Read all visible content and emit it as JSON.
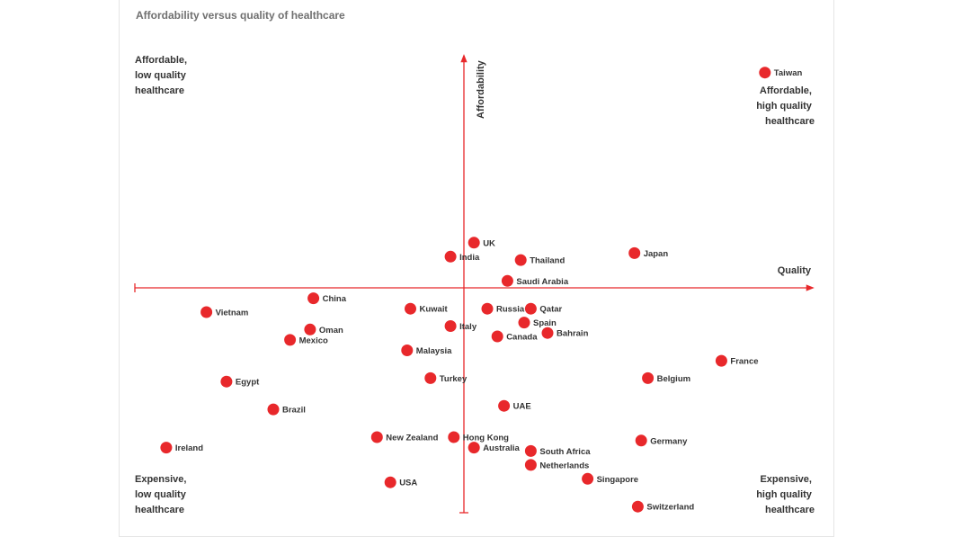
{
  "chart_data": {
    "type": "scatter",
    "title": "Affordability versus quality of healthcare",
    "xlabel": "Quality",
    "ylabel": "Affordability",
    "grid": false,
    "point_color": "#e8282b",
    "axis_color": "#e8282b",
    "quadrants": {
      "top_left": [
        "Affordable,",
        "low quality",
        "healthcare"
      ],
      "top_right": [
        "Affordable,",
        "high quality",
        "healthcare"
      ],
      "bottom_left": [
        "Expensive,",
        "low quality",
        "healthcare"
      ],
      "bottom_right": [
        "Expensive,",
        "high quality",
        "healthcare"
      ]
    },
    "points": [
      {
        "label": "Taiwan",
        "x": 9.0,
        "y": 6.2
      },
      {
        "label": "UK",
        "x": 0.3,
        "y": 1.3
      },
      {
        "label": "India",
        "x": -0.4,
        "y": 0.9
      },
      {
        "label": "Thailand",
        "x": 1.7,
        "y": 0.8
      },
      {
        "label": "Japan",
        "x": 5.1,
        "y": 1.0
      },
      {
        "label": "Saudi Arabia",
        "x": 1.3,
        "y": 0.2
      },
      {
        "label": "China",
        "x": -4.5,
        "y": -0.3
      },
      {
        "label": "Kuwait",
        "x": -1.6,
        "y": -0.6
      },
      {
        "label": "Russia",
        "x": 0.7,
        "y": -0.6
      },
      {
        "label": "Qatar",
        "x": 2.0,
        "y": -0.6
      },
      {
        "label": "Vietnam",
        "x": -7.7,
        "y": -0.7
      },
      {
        "label": "Spain",
        "x": 1.8,
        "y": -1.0
      },
      {
        "label": "Oman",
        "x": -4.6,
        "y": -1.2
      },
      {
        "label": "Italy",
        "x": -0.4,
        "y": -1.1
      },
      {
        "label": "Canada",
        "x": 1.0,
        "y": -1.4
      },
      {
        "label": "Bahrain",
        "x": 2.5,
        "y": -1.3
      },
      {
        "label": "Mexico",
        "x": -5.2,
        "y": -1.5
      },
      {
        "label": "Malaysia",
        "x": -1.7,
        "y": -1.8
      },
      {
        "label": "France",
        "x": 7.7,
        "y": -2.1
      },
      {
        "label": "Egypt",
        "x": -7.1,
        "y": -2.7
      },
      {
        "label": "Turkey",
        "x": -1.0,
        "y": -2.6
      },
      {
        "label": "Belgium",
        "x": 5.5,
        "y": -2.6
      },
      {
        "label": "Brazil",
        "x": -5.7,
        "y": -3.5
      },
      {
        "label": "UAE",
        "x": 1.2,
        "y": -3.4
      },
      {
        "label": "New Zealand",
        "x": -2.6,
        "y": -4.3
      },
      {
        "label": "Hong Kong",
        "x": -0.3,
        "y": -4.3
      },
      {
        "label": "Australia",
        "x": 0.3,
        "y": -4.6
      },
      {
        "label": "Germany",
        "x": 5.3,
        "y": -4.4
      },
      {
        "label": "Ireland",
        "x": -8.9,
        "y": -4.6
      },
      {
        "label": "South Africa",
        "x": 2.0,
        "y": -4.7
      },
      {
        "label": "Netherlands",
        "x": 2.0,
        "y": -5.1
      },
      {
        "label": "Singapore",
        "x": 3.7,
        "y": -5.5
      },
      {
        "label": "USA",
        "x": -2.2,
        "y": -5.6
      },
      {
        "label": "Switzerland",
        "x": 5.2,
        "y": -6.3
      }
    ]
  }
}
